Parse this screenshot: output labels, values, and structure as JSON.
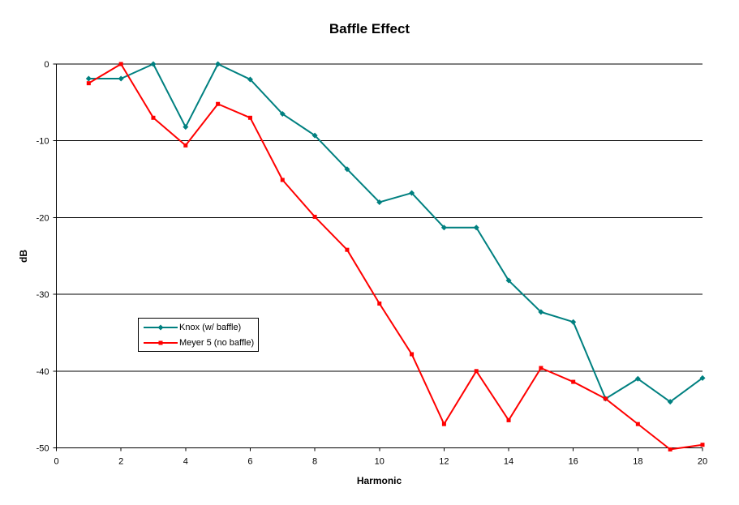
{
  "title": "Baffle Effect",
  "chart_data": {
    "type": "line",
    "title": "Baffle Effect",
    "xlabel": "Harmonic",
    "ylabel": "dB",
    "xlim": [
      0,
      20
    ],
    "ylim": [
      -50,
      0
    ],
    "xticks": [
      0,
      2,
      4,
      6,
      8,
      10,
      12,
      14,
      16,
      18,
      20
    ],
    "yticks": [
      0,
      -10,
      -20,
      -30,
      -40,
      -50
    ],
    "grid": "horizontal",
    "gridline_color": "#000000",
    "axis_color": "#000000",
    "background": "#FFFFFF",
    "legend_position": "inside-left-middle",
    "x": [
      1,
      2,
      3,
      4,
      5,
      6,
      7,
      8,
      9,
      10,
      11,
      12,
      13,
      14,
      15,
      16,
      17,
      18,
      19,
      20
    ],
    "series": [
      {
        "name": "Knox (w/ baffle)",
        "color": "#008080",
        "marker": "diamond",
        "values": [
          -1.9,
          -1.9,
          0,
          -8.2,
          0,
          -2.0,
          -6.5,
          -9.3,
          -13.7,
          -18.0,
          -16.8,
          -21.3,
          -21.3,
          -28.2,
          -32.3,
          -33.6,
          -43.6,
          -41.0,
          -44.0,
          -40.9
        ]
      },
      {
        "name": "Meyer 5 (no baffle)",
        "color": "#FF0000",
        "marker": "square",
        "values": [
          -2.5,
          0,
          -7.0,
          -10.6,
          -5.2,
          -7.0,
          -15.1,
          -19.9,
          -24.2,
          -31.2,
          -37.8,
          -46.9,
          -40.0,
          -46.4,
          -39.6,
          -41.4,
          -43.6,
          -46.9,
          -50.2,
          -49.6
        ]
      }
    ]
  }
}
